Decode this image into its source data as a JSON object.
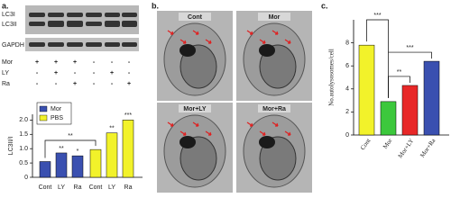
{
  "panel_labels": [
    "a.",
    "b.",
    "c."
  ],
  "blot": {
    "rows": [
      "LC3I",
      "LC3II",
      "GAPDH"
    ]
  },
  "treatment": {
    "rows": [
      {
        "label": "Mor",
        "signs": [
          "+",
          "+",
          "+",
          "-",
          "-",
          "-"
        ]
      },
      {
        "label": "LY",
        "signs": [
          "-",
          "+",
          "-",
          "-",
          "+",
          "-"
        ]
      },
      {
        "label": "Ra",
        "signs": [
          "-",
          "-",
          "+",
          "-",
          "-",
          "+"
        ]
      }
    ]
  },
  "micrographs": [
    "Cont",
    "Mor",
    "Mor+LY",
    "Mor+Ra"
  ],
  "chart_data": [
    {
      "type": "bar",
      "ylabel": "LC3II/I",
      "categories": [
        "Cont",
        "LY",
        "Ra"
      ],
      "series": [
        {
          "name": "Mor",
          "color": "#3a50b0",
          "values": [
            0.55,
            0.85,
            0.75
          ]
        },
        {
          "name": "PBS",
          "color": "#f2f22a",
          "values": [
            0.97,
            1.55,
            2.0
          ]
        }
      ],
      "ylim": [
        0,
        2.2
      ],
      "yticks": [
        0,
        {
          "value": 0.5,
          "label": "0.5"
        },
        {
          "value": 1,
          "label": "1.0"
        },
        {
          "value": 1.5,
          "label": "1.5"
        },
        {
          "value": 2,
          "label": "2.0"
        }
      ],
      "annotations": [
        "**",
        "*",
        "**",
        "**",
        "***"
      ]
    },
    {
      "type": "bar",
      "ylabel": "No.autolysosomes/cell",
      "categories": [
        "Cont",
        "Mor",
        "Mor+LY",
        "Mor+Ra"
      ],
      "values": [
        7.8,
        2.9,
        4.3,
        6.4
      ],
      "colors": [
        "#f2f22a",
        "#3cc83c",
        "#e82828",
        "#3a50b0"
      ],
      "ylim": [
        0,
        10
      ],
      "yticks": [
        0,
        2,
        4,
        6,
        8
      ],
      "annotations": [
        "***",
        "**",
        "***"
      ]
    }
  ]
}
